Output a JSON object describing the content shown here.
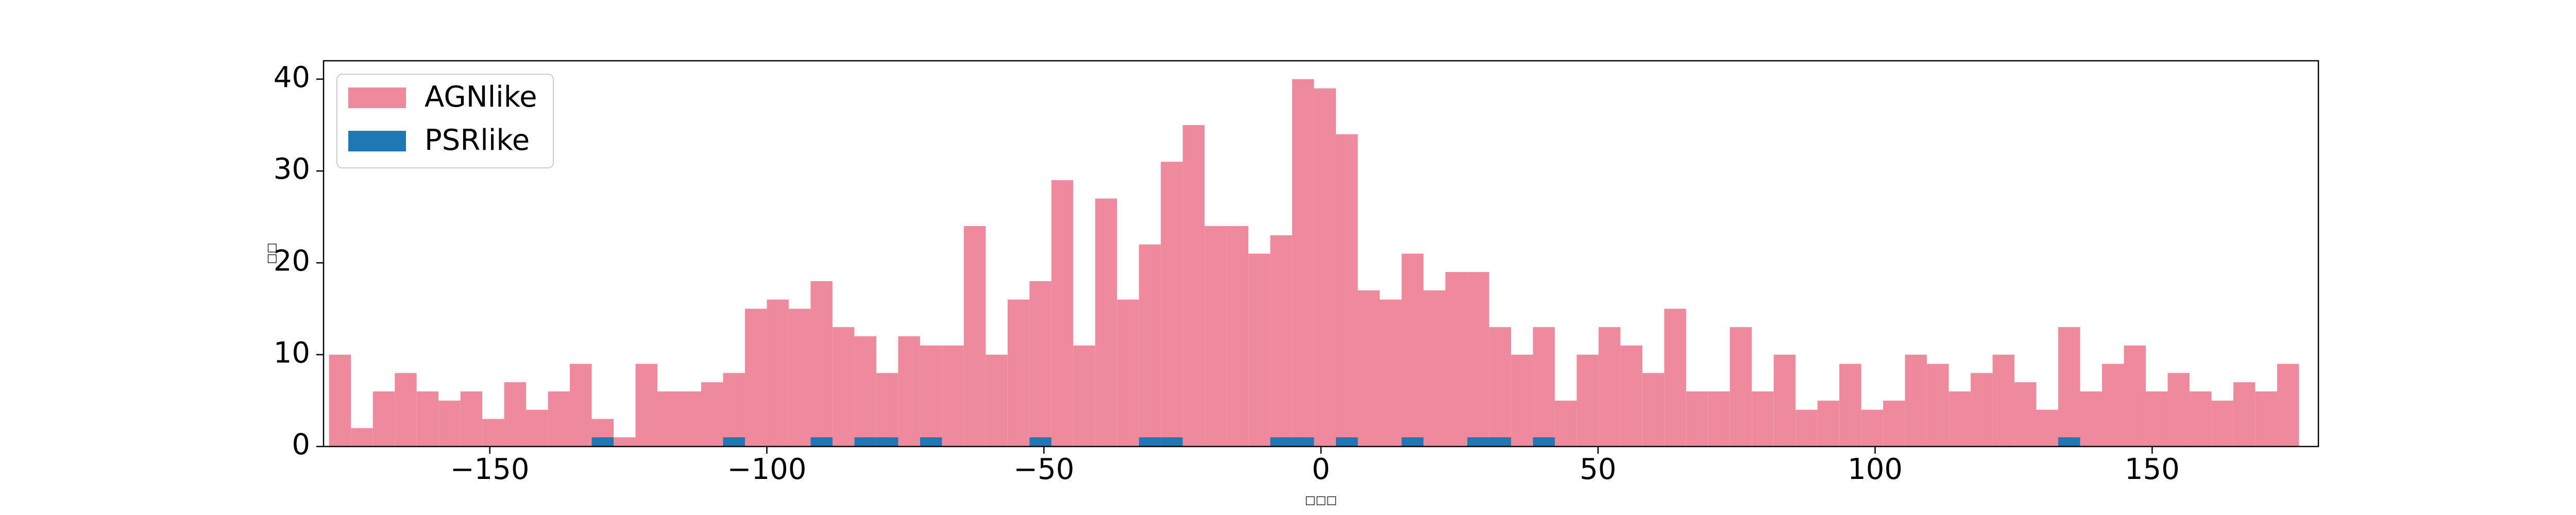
{
  "chart_data": {
    "type": "histogram",
    "xlabel": "□□□",
    "ylabel": "□□",
    "bins": [
      -179,
      -175.05,
      -171.1,
      -167.15,
      -163.2,
      -159.25,
      -155.3,
      -151.35,
      -147.4,
      -143.45,
      -139.5,
      -135.55,
      -131.6,
      -127.65,
      -123.7,
      -119.75,
      -115.8,
      -111.85,
      -107.9,
      -103.95,
      -100,
      -96.05,
      -92.1,
      -88.15,
      -84.2,
      -80.25,
      -76.3,
      -72.35,
      -68.4,
      -64.45,
      -60.5,
      -56.55,
      -52.6,
      -48.65,
      -44.7,
      -40.75,
      -36.8,
      -32.85,
      -28.9,
      -24.95,
      -21,
      -17.05,
      -13.1,
      -9.15,
      -5.2,
      -1.25,
      2.7,
      6.65,
      10.6,
      14.55,
      18.5,
      22.45,
      26.4,
      30.35,
      34.3,
      38.25,
      42.2,
      46.15,
      50.1,
      54.05,
      58,
      61.95,
      65.9,
      69.85,
      73.8,
      77.75,
      81.7,
      85.65,
      89.6,
      93.55,
      97.5,
      101.45,
      105.4,
      109.35,
      113.3,
      117.25,
      121.2,
      125.15,
      129.1,
      133.05,
      137,
      140.95,
      144.9,
      148.85,
      152.8,
      156.75,
      160.7,
      164.65,
      168.6,
      172.55,
      176.5
    ],
    "series": [
      {
        "name": "AGNlike",
        "color": "#ee8a9c",
        "values": [
          10,
          2,
          6,
          8,
          6,
          5,
          6,
          3,
          7,
          4,
          6,
          9,
          3,
          1,
          9,
          6,
          6,
          7,
          8,
          15,
          16,
          15,
          18,
          13,
          12,
          8,
          12,
          11,
          11,
          24,
          10,
          16,
          18,
          29,
          11,
          27,
          16,
          22,
          31,
          35,
          24,
          24,
          21,
          23,
          40,
          39,
          34,
          17,
          16,
          21,
          17,
          19,
          19,
          13,
          10,
          13,
          5,
          10,
          13,
          11,
          8,
          15,
          6,
          6,
          13,
          6,
          10,
          4,
          5,
          9,
          4,
          5,
          10,
          9,
          6,
          8,
          10,
          7,
          4,
          13,
          6,
          9,
          11,
          6,
          8,
          6,
          5,
          7,
          6,
          9
        ]
      },
      {
        "name": "PSRlike",
        "color": "#1f77b4",
        "values": [
          0,
          0,
          0,
          0,
          0,
          0,
          0,
          0,
          0,
          0,
          0,
          0,
          1,
          0,
          0,
          0,
          0,
          0,
          1,
          0,
          0,
          0,
          1,
          0,
          1,
          1,
          0,
          1,
          0,
          0,
          0,
          0,
          1,
          0,
          0,
          0,
          0,
          1,
          1,
          0,
          0,
          0,
          0,
          1,
          1,
          0,
          1,
          0,
          0,
          1,
          0,
          0,
          1,
          1,
          0,
          1,
          0,
          0,
          0,
          0,
          0,
          0,
          0,
          0,
          0,
          0,
          0,
          0,
          0,
          0,
          0,
          0,
          0,
          0,
          0,
          0,
          0,
          0,
          0,
          1,
          0,
          0,
          0,
          0,
          0,
          0,
          0,
          0,
          0,
          0
        ]
      }
    ],
    "xlim": [
      -180,
      180
    ],
    "ylim": [
      0,
      42
    ],
    "xticks": [
      {
        "value": -150,
        "label": "−150"
      },
      {
        "value": -100,
        "label": "−100"
      },
      {
        "value": -50,
        "label": "−50"
      },
      0,
      50,
      100,
      150
    ],
    "yticks": [
      0,
      10,
      20,
      30,
      40
    ],
    "legend": "upper left",
    "grid": false
  }
}
